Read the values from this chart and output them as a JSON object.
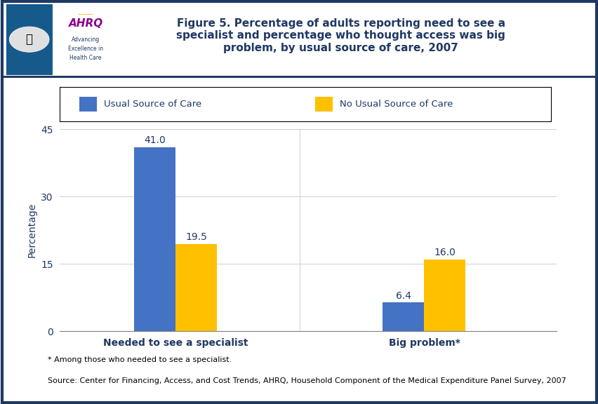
{
  "title": "Figure 5. Percentage of adults reporting need to see a\nspecialist and percentage who thought access was big\nproblem, by usual source of care, 2007",
  "categories": [
    "Needed to see a specialist",
    "Big problem*"
  ],
  "usual_source": [
    41.0,
    6.4
  ],
  "no_usual_source": [
    19.5,
    16.0
  ],
  "usual_color": "#4472C4",
  "no_usual_color": "#FFC000",
  "ylabel": "Percentage",
  "ylim": [
    0,
    45
  ],
  "yticks": [
    0,
    15,
    30,
    45
  ],
  "legend_labels": [
    "Usual Source of Care",
    "No Usual Source of Care"
  ],
  "footnote1": "* Among those who needed to see a specialist.",
  "footnote2": "Source: Center for Financing, Access, and Cost Trends, AHRQ, Household Component of the Medical Expenditure Panel Survey, 2007",
  "title_color": "#1F3864",
  "bar_width": 0.25,
  "header_bg": "#ffffff",
  "logo_bg": "#1a7abf",
  "border_color": "#1F3864",
  "blue_line_color": "#1F3864",
  "x_positions": [
    1.0,
    2.5
  ],
  "xlim": [
    0.3,
    3.3
  ]
}
